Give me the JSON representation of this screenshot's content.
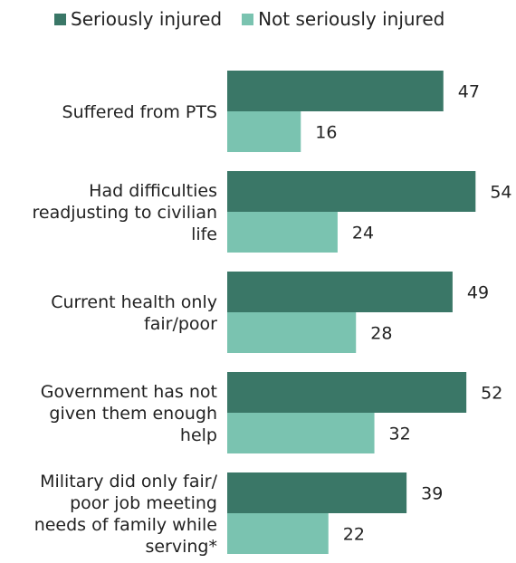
{
  "chart_data": {
    "type": "bar",
    "orientation": "horizontal",
    "categories": [
      "Suffered from PTS",
      "Had difficulties readjusting to civilian life",
      "Current health only fair/poor",
      "Government has not given them enough help",
      "Military did only fair/ poor job meeting needs of family while serving*"
    ],
    "category_lines": [
      [
        "Suffered from PTS"
      ],
      [
        "Had difficulties",
        "readjusting to civilian",
        "life"
      ],
      [
        "Current health only",
        "fair/poor"
      ],
      [
        "Government has not",
        "given them enough",
        "help"
      ],
      [
        "Military did only fair/",
        "poor job meeting",
        "needs of family while",
        "serving*"
      ]
    ],
    "series": [
      {
        "name": "Seriously injured",
        "values": [
          47,
          54,
          49,
          52,
          39
        ],
        "color": "#3a7767"
      },
      {
        "name": "Not seriously injured",
        "values": [
          16,
          24,
          28,
          32,
          22
        ],
        "color": "#7ac3b0"
      }
    ],
    "legend_position": "top-left",
    "grid": false
  }
}
